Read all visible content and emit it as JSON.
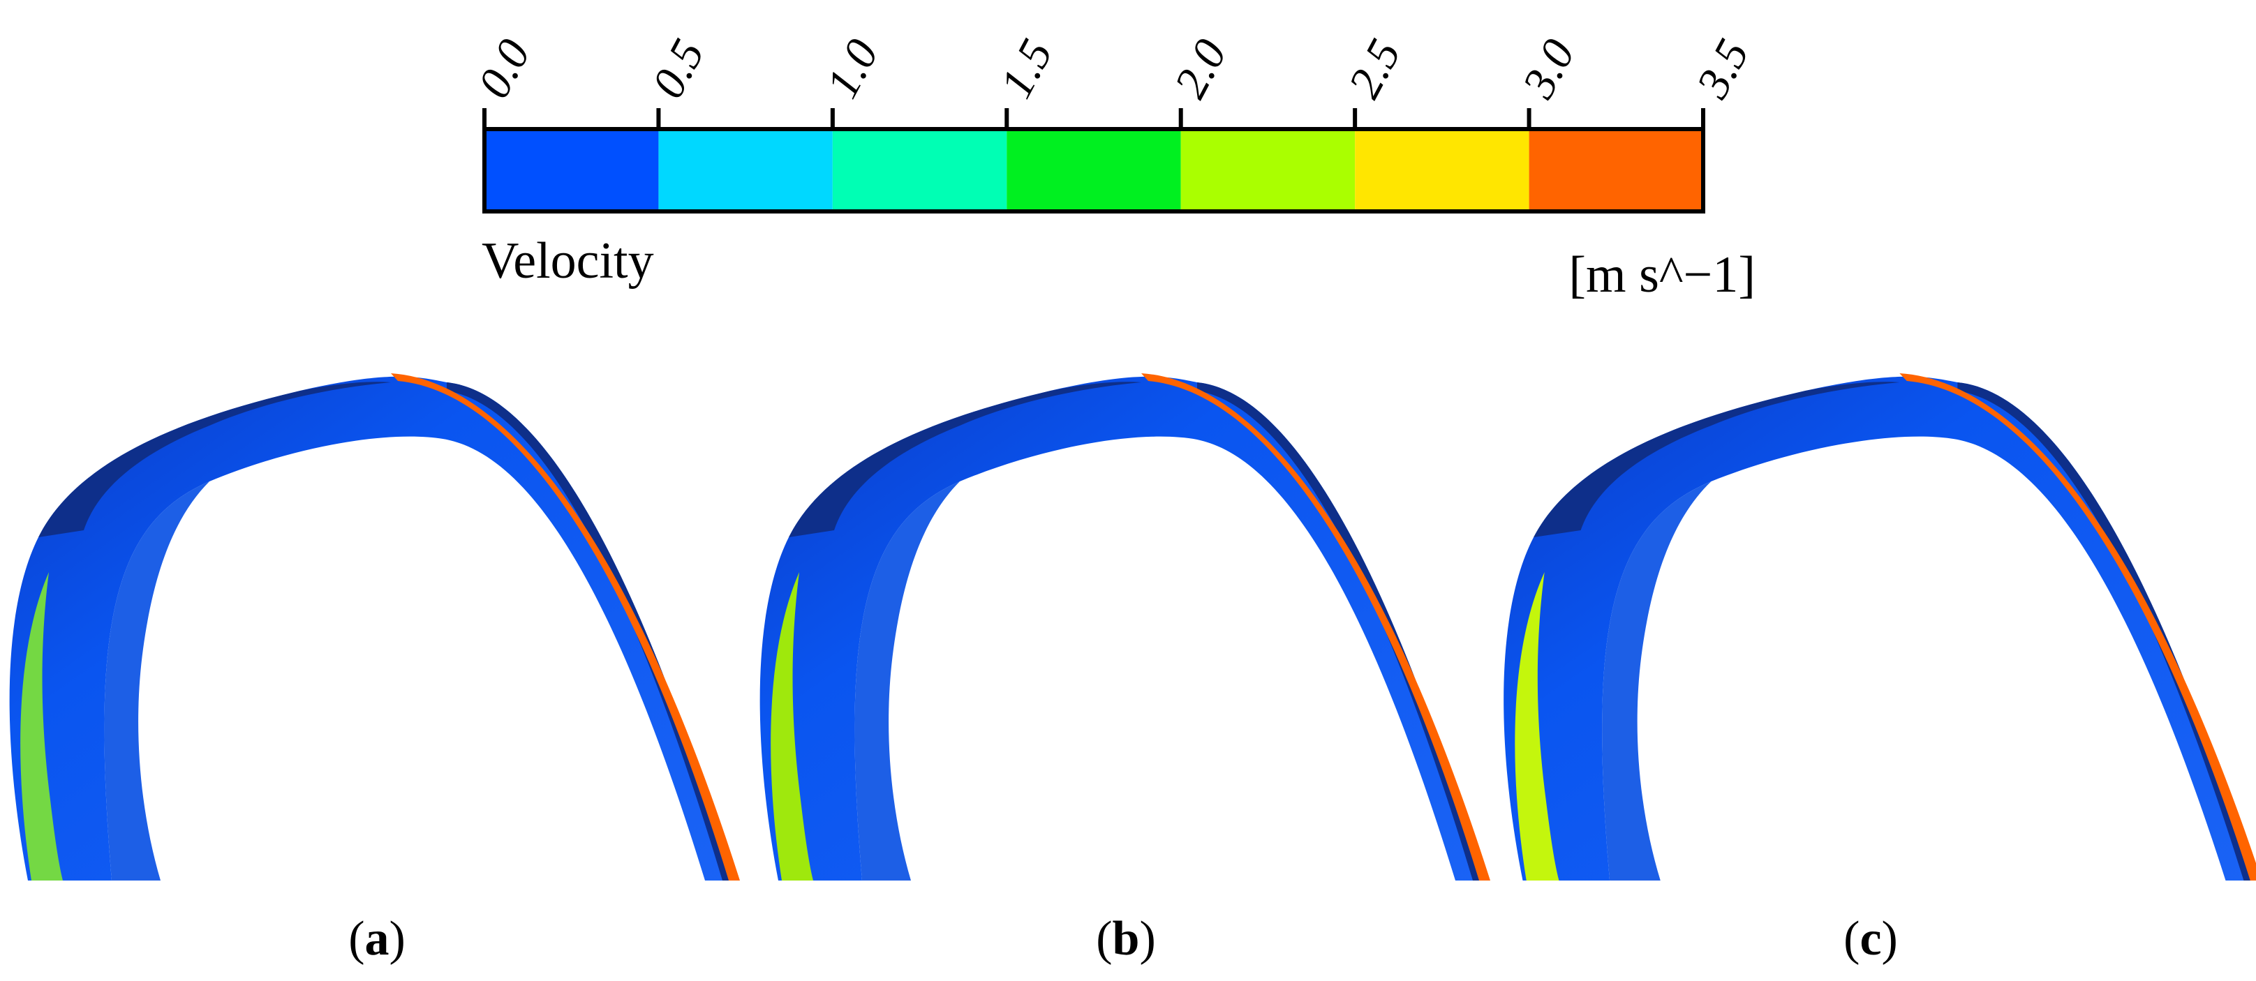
{
  "colorbar": {
    "variable_label": "Velocity",
    "unit_label": "[m s^−1]",
    "ticks": [
      "0.0",
      "0.5",
      "1.0",
      "1.5",
      "2.0",
      "2.5",
      "3.0",
      "3.5"
    ],
    "bins": [
      {
        "from": 0.0,
        "to": 0.5,
        "color": "#0050ff"
      },
      {
        "from": 0.5,
        "to": 1.0,
        "color": "#00d8ff"
      },
      {
        "from": 1.0,
        "to": 1.5,
        "color": "#00ffb4"
      },
      {
        "from": 1.5,
        "to": 2.0,
        "color": "#00f020"
      },
      {
        "from": 2.0,
        "to": 2.5,
        "color": "#aaff00"
      },
      {
        "from": 2.5,
        "to": 3.0,
        "color": "#ffe600"
      },
      {
        "from": 3.0,
        "to": 3.5,
        "color": "#ff6400"
      }
    ]
  },
  "panels": [
    {
      "id": "a",
      "label_open": "(",
      "label_letter": "a",
      "label_close": ")",
      "outer_edge_color": "#ff6400",
      "inner_band_color": "#7adf3a"
    },
    {
      "id": "b",
      "label_open": "(",
      "label_letter": "b",
      "label_close": ")",
      "outer_edge_color": "#ff6400",
      "inner_band_color": "#a8f000"
    },
    {
      "id": "c",
      "label_open": "(",
      "label_letter": "c",
      "label_close": ")",
      "outer_edge_color": "#ff6400",
      "inner_band_color": "#cfff00"
    }
  ],
  "colors": {
    "ring_body": "#0a55f0",
    "ring_rim": "#0e2f8a",
    "ring_inner": "#1d5fe6"
  }
}
